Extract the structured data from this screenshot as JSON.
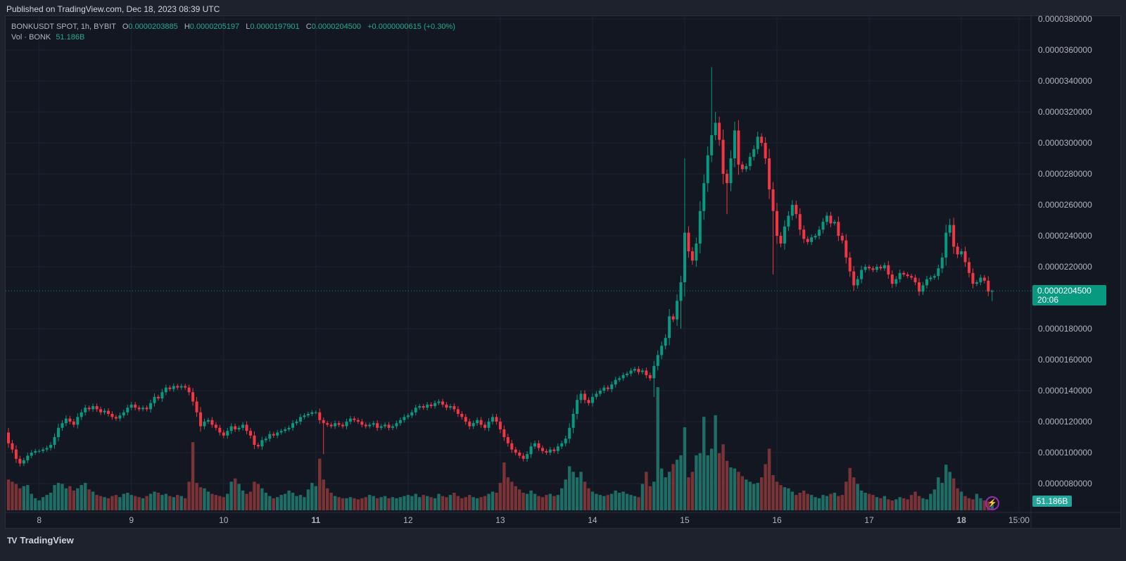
{
  "header": {
    "published": "Published on TradingView.com, Dec 18, 2023 08:39 UTC"
  },
  "legend": {
    "symbol": "BONKUSDT SPOT, 1h, BYBIT",
    "o_key": "O",
    "open": "0.0000203885",
    "h_key": "H",
    "high": "0.0000205197",
    "l_key": "L",
    "low": "0.0000197901",
    "c_key": "C",
    "close": "0.0000204500",
    "change": "+0.0000000615 (+0.30%)",
    "vol_label": "Vol · BONK",
    "vol_value": "51.186B"
  },
  "price_label": {
    "price": "0.0000204500",
    "countdown": "20:06"
  },
  "volume_label": "51.186B",
  "footer": {
    "brand": "TradingView"
  },
  "colors": {
    "up": "#089981",
    "down": "#f23645",
    "vol_up": "#1f6e66",
    "vol_down": "#7a3336",
    "grid": "#1f2330",
    "bg": "#131722"
  },
  "chart_data": {
    "type": "candlestick",
    "title": "BONKUSDT SPOT, 1h, BYBIT",
    "price_unit": 1e-06,
    "volume_unit": "B",
    "ylim": [
      8e-06,
      3.8e-05
    ],
    "current_price": 20.45,
    "first_candle": "Dec 7 16:00",
    "interval_hours": 1,
    "price_ticks": [
      {
        "value": 38,
        "label": "0.0000380000"
      },
      {
        "value": 36,
        "label": "0.0000360000"
      },
      {
        "value": 34,
        "label": "0.0000340000"
      },
      {
        "value": 32,
        "label": "0.0000320000"
      },
      {
        "value": 30,
        "label": "0.0000300000"
      },
      {
        "value": 28,
        "label": "0.0000280000"
      },
      {
        "value": 26,
        "label": "0.0000260000"
      },
      {
        "value": 24,
        "label": "0.0000240000"
      },
      {
        "value": 22,
        "label": "0.0000220000"
      },
      {
        "value": 18,
        "label": "0.0000180000"
      },
      {
        "value": 16,
        "label": "0.0000160000"
      },
      {
        "value": 14,
        "label": "0.0000140000"
      },
      {
        "value": 12,
        "label": "0.0000120000"
      },
      {
        "value": 10,
        "label": "0.0000100000"
      },
      {
        "value": 8,
        "label": "0.0000080000"
      }
    ],
    "time_ticks": [
      {
        "label": "8",
        "hour": 8,
        "bold": false
      },
      {
        "label": "9",
        "hour": 32,
        "bold": false
      },
      {
        "label": "10",
        "hour": 56,
        "bold": false
      },
      {
        "label": "11",
        "hour": 80,
        "bold": true
      },
      {
        "label": "12",
        "hour": 104,
        "bold": false
      },
      {
        "label": "13",
        "hour": 128,
        "bold": false
      },
      {
        "label": "14",
        "hour": 152,
        "bold": false
      },
      {
        "label": "15",
        "hour": 176,
        "bold": false
      },
      {
        "label": "16",
        "hour": 200,
        "bold": false
      },
      {
        "label": "17",
        "hour": 224,
        "bold": false
      },
      {
        "label": "18",
        "hour": 248,
        "bold": true
      },
      {
        "label": "15:00",
        "hour": 263,
        "bold": false
      }
    ],
    "close": [
      10.6,
      10.2,
      9.6,
      9.3,
      9.5,
      9.8,
      10.0,
      10.1,
      10.1,
      10.2,
      10.3,
      10.5,
      11.0,
      11.6,
      11.9,
      12.2,
      12.0,
      11.8,
      12.3,
      12.6,
      12.9,
      12.8,
      13.0,
      12.8,
      12.6,
      12.7,
      12.5,
      12.3,
      12.2,
      12.4,
      12.6,
      12.9,
      13.1,
      12.9,
      12.8,
      12.9,
      12.8,
      13.2,
      13.6,
      13.5,
      13.9,
      14.2,
      14.1,
      14.3,
      14.2,
      14.3,
      14.2,
      13.9,
      13.3,
      12.6,
      11.7,
      12.0,
      12.1,
      11.8,
      11.6,
      11.3,
      11.1,
      11.4,
      11.7,
      11.5,
      11.6,
      11.8,
      11.4,
      11.1,
      10.5,
      10.4,
      10.8,
      10.9,
      11.2,
      11.1,
      11.3,
      11.4,
      11.5,
      11.6,
      11.9,
      12.0,
      12.3,
      12.4,
      12.5,
      12.6,
      12.6,
      12.1,
      11.9,
      11.8,
      11.7,
      11.9,
      11.8,
      11.7,
      12.0,
      12.2,
      12.1,
      12.0,
      11.8,
      11.7,
      11.8,
      11.9,
      11.6,
      11.7,
      11.8,
      11.6,
      11.7,
      11.9,
      12.1,
      12.3,
      12.4,
      12.6,
      12.9,
      13.0,
      12.9,
      13.1,
      13.0,
      13.2,
      13.3,
      13.1,
      12.9,
      13.0,
      12.8,
      12.5,
      12.3,
      12.0,
      11.7,
      11.9,
      12.1,
      11.8,
      11.6,
      12.0,
      12.3,
      12.0,
      11.5,
      11.0,
      10.6,
      10.2,
      10.0,
      9.8,
      9.6,
      9.9,
      10.4,
      10.6,
      10.3,
      10.1,
      10.0,
      10.2,
      10.1,
      10.4,
      10.6,
      10.9,
      11.6,
      12.5,
      13.4,
      13.8,
      13.4,
      13.2,
      13.6,
      13.8,
      14.0,
      14.2,
      14.1,
      14.4,
      14.7,
      14.8,
      15.0,
      15.1,
      15.3,
      15.4,
      15.2,
      15.3,
      15.0,
      14.8,
      15.6,
      16.3,
      16.9,
      17.4,
      18.8,
      18.6,
      19.8,
      21.0,
      24.2,
      23.0,
      22.4,
      23.5,
      25.6,
      27.4,
      29.2,
      30.5,
      31.3,
      30.2,
      28.0,
      27.4,
      29.0,
      30.8,
      28.6,
      28.3,
      28.5,
      29.1,
      29.6,
      30.4,
      30.0,
      29.0,
      27.0,
      25.6,
      24.0,
      23.5,
      24.6,
      25.3,
      26.0,
      25.4,
      24.4,
      23.8,
      23.6,
      23.9,
      24.0,
      24.4,
      24.9,
      25.3,
      24.8,
      24.9,
      24.0,
      23.7,
      22.6,
      21.7,
      20.8,
      21.2,
      21.8,
      22.0,
      21.9,
      21.8,
      22.0,
      21.9,
      22.1,
      21.5,
      20.9,
      21.2,
      21.6,
      21.5,
      21.4,
      21.3,
      21.0,
      20.4,
      20.8,
      21.2,
      21.3,
      21.4,
      21.9,
      22.6,
      24.2,
      24.7,
      23.3,
      22.8,
      23.0,
      22.3,
      21.6,
      20.9,
      21.0,
      21.3,
      21.1,
      20.4,
      20.45
    ],
    "first_open": 11.3,
    "wick_overrides": [
      {
        "index": 183,
        "high": 34.9
      },
      {
        "index": 176,
        "high": 29.0
      },
      {
        "index": 184,
        "high": 32.0
      },
      {
        "index": 187,
        "low": 25.4
      },
      {
        "index": 199,
        "low": 21.5
      },
      {
        "index": 82,
        "low": 9.9
      },
      {
        "index": 245,
        "high": 25.1
      },
      {
        "index": 168,
        "low": 13.6
      },
      {
        "index": 175,
        "low": 18.0
      },
      {
        "index": 256,
        "open": 20.39,
        "high": 20.52,
        "low": 19.79
      }
    ],
    "volume": [
      280,
      260,
      240,
      200,
      220,
      230,
      150,
      110,
      90,
      120,
      140,
      160,
      230,
      250,
      240,
      200,
      220,
      180,
      200,
      230,
      250,
      190,
      170,
      140,
      130,
      120,
      110,
      130,
      140,
      120,
      150,
      160,
      140,
      130,
      120,
      110,
      130,
      150,
      170,
      160,
      140,
      150,
      130,
      120,
      140,
      130,
      110,
      260,
      620,
      250,
      210,
      200,
      170,
      150,
      140,
      130,
      120,
      150,
      260,
      290,
      240,
      180,
      150,
      170,
      260,
      240,
      200,
      160,
      130,
      110,
      120,
      140,
      150,
      180,
      160,
      130,
      140,
      120,
      190,
      250,
      220,
      470,
      280,
      200,
      160,
      130,
      120,
      110,
      110,
      120,
      110,
      100,
      110,
      120,
      140,
      130,
      110,
      120,
      130,
      110,
      120,
      110,
      120,
      130,
      140,
      130,
      150,
      120,
      140,
      130,
      120,
      110,
      150,
      130,
      120,
      140,
      160,
      130,
      110,
      120,
      140,
      120,
      110,
      120,
      130,
      150,
      170,
      160,
      250,
      435,
      300,
      260,
      220,
      190,
      160,
      150,
      180,
      150,
      130,
      120,
      140,
      150,
      130,
      140,
      200,
      280,
      400,
      350,
      300,
      350,
      260,
      200,
      170,
      150,
      140,
      130,
      140,
      150,
      180,
      160,
      170,
      150,
      140,
      130,
      120,
      240,
      350,
      220,
      260,
      1120,
      380,
      300,
      350,
      420,
      460,
      500,
      755,
      300,
      350,
      500,
      520,
      850,
      500,
      560,
      865,
      520,
      600,
      450,
      390,
      380,
      350,
      310,
      280,
      260,
      240,
      250,
      300,
      420,
      560,
      320,
      260,
      230,
      210,
      200,
      170,
      140,
      160,
      180,
      150,
      140,
      120,
      110,
      140,
      130,
      150,
      160,
      130,
      140,
      260,
      385,
      300,
      240,
      180,
      160,
      150,
      140,
      120,
      110,
      130,
      100,
      90,
      100,
      120,
      110,
      100,
      140,
      170,
      130,
      110,
      100,
      150,
      190,
      300,
      250,
      415,
      350,
      290,
      200,
      170,
      130,
      110,
      100,
      150,
      110,
      90,
      80,
      51.186
    ]
  }
}
